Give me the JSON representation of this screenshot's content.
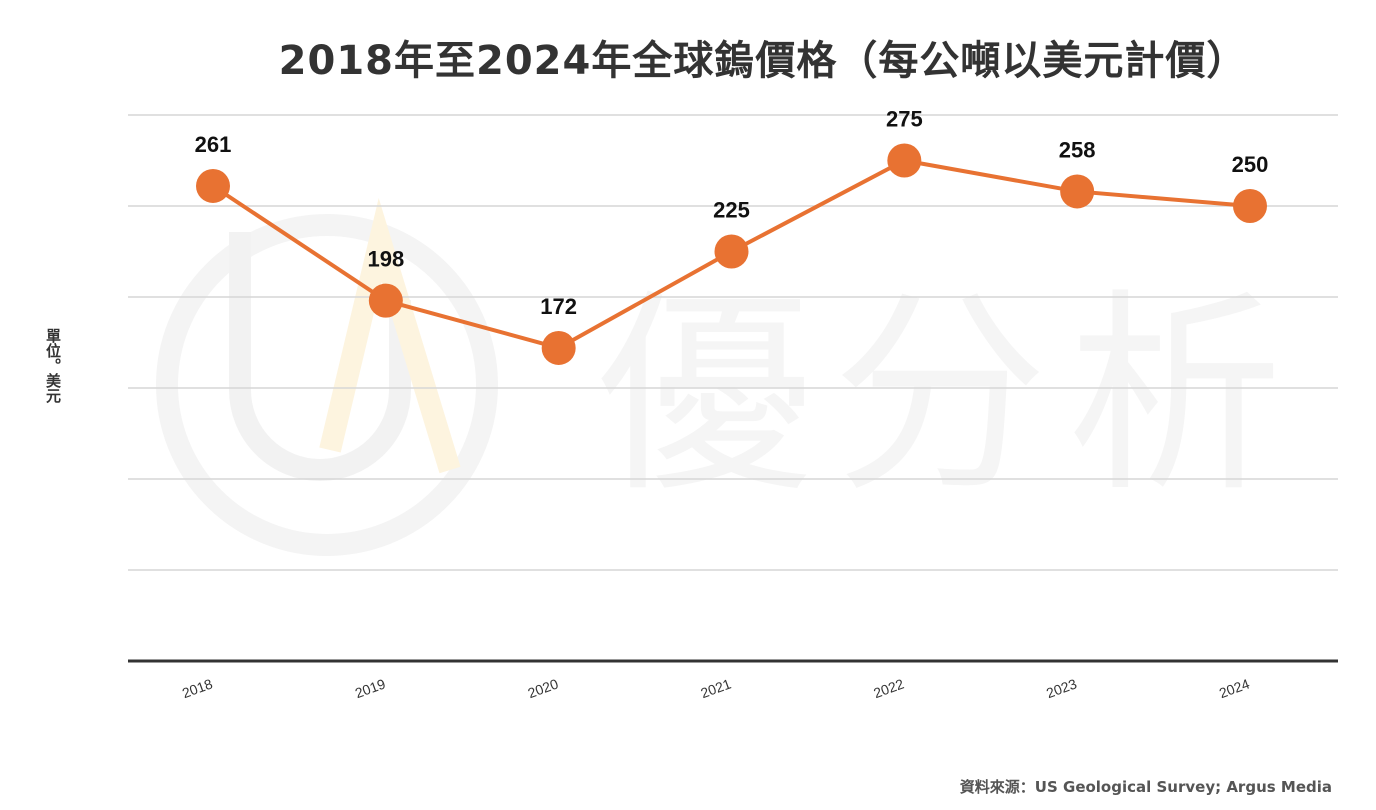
{
  "chart_data": {
    "type": "line",
    "title": "2018年至2024年全球鎢價格（每公噸以美元計價）",
    "ylabel": "單位。美元",
    "xlabel": "",
    "categories": [
      "2018",
      "2019",
      "2020",
      "2021",
      "2022",
      "2023",
      "2024"
    ],
    "series": [
      {
        "values": [
          261,
          198,
          172,
          225,
          275,
          258,
          250
        ]
      }
    ],
    "data_labels": [
      "261",
      "198",
      "172",
      "225",
      "275",
      "258",
      "250"
    ],
    "ylim": [
      0,
      300
    ],
    "grid": true,
    "legend": "none",
    "line_color": "#E87232",
    "marker_color": "#E87232"
  },
  "source": "資料來源：US Geological Survey; Argus Media",
  "watermark": {
    "text": "優分析",
    "logo_letters": "UA"
  }
}
